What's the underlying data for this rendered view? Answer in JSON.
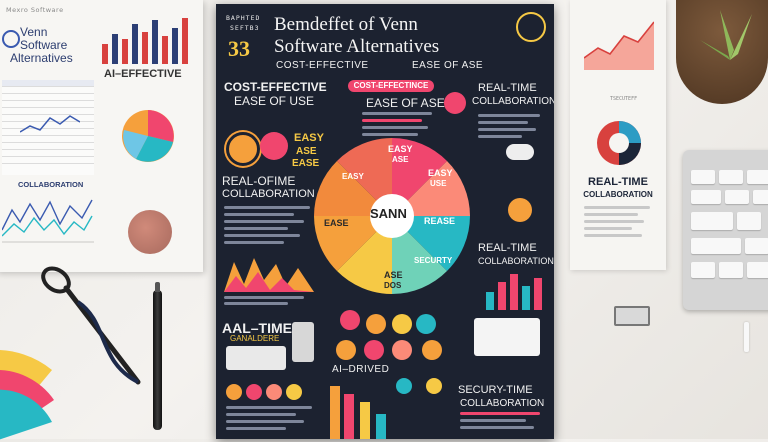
{
  "left_paper": {
    "header": "Mexro Software",
    "title_line1": "Venn",
    "title_line2": "Software",
    "title_line3": "Alternatives",
    "effective_label": "AI–EFFECTIVE",
    "collab_label": "COLLABORATION"
  },
  "poster": {
    "top_small_1": "BAPHTED",
    "top_small_2": "SEFTB3",
    "number": "33",
    "title_line1": "Bemdeffet of Venn",
    "title_line2": "Software Alternatives",
    "sub_left": "COST-EFFECTIVE",
    "sub_right": "EASE OF ASE",
    "left_head_1": "COST-EFFECTIVE",
    "left_head_2": "EASE OF USE",
    "pill_cost": "COST-EFFECTINCE",
    "ease_mid": "EASE OF ASE",
    "realtime_top_1": "REAL-TIME",
    "realtime_top_2": "COLLABORATION",
    "ease_small_1": "EASY",
    "ease_small_2": "ASE",
    "ease_small_3": "EASE",
    "realoftime_1": "REAL-OFIME",
    "realoftime_2": "COLLABORATION",
    "wheel_center": "SANN",
    "wheel_seg_1a": "EASY",
    "wheel_seg_1b": "ASE",
    "wheel_seg_2a": "EASY",
    "wheel_seg_2b": "USE",
    "wheel_seg_3a": "REASE",
    "wheel_seg_4a": "SECURTY",
    "wheel_seg_5a": "ASE",
    "wheel_seg_5b": "DOS",
    "wheel_seg_6a": "EASE",
    "wheel_seg_7a": "EASY",
    "realtime_right_1": "REAL-TIME",
    "realtime_right_2": "COLLABORATION",
    "aal_time": "AAL–TIME",
    "aal_sub": "GANALDERE",
    "ai_driven": "AI–DRIVED",
    "secury_1": "SECURY-TIME",
    "secury_2": "COLLABORATION"
  },
  "right_paper": {
    "title_1": "REAL-TIME",
    "title_2": "COLLABORATION",
    "small": "TSECUTEFF"
  },
  "colors": {
    "poster_bg": "#1c2230",
    "pink": "#f0466e",
    "orange": "#f5a03c",
    "teal": "#27b8c4",
    "yellow": "#f6c945",
    "coral": "#fb8a78"
  }
}
